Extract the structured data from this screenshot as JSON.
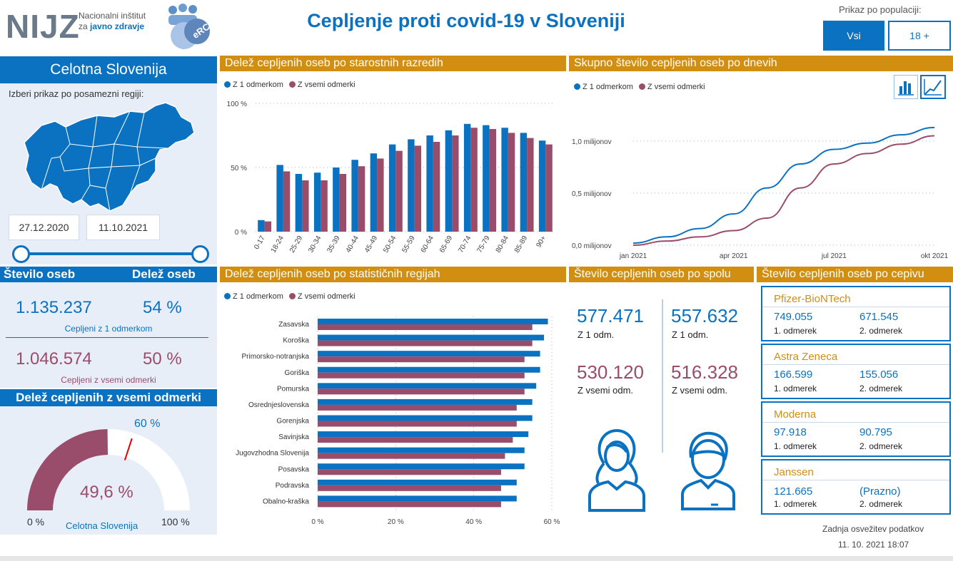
{
  "header": {
    "logo_text": "NIJZ",
    "logo_line1": "Nacionalni inštitut",
    "logo_line2_prefix": "za ",
    "logo_line2_bold": "javno zdravje",
    "badge_text": "eRCO",
    "title": "Cepljenje proti covid-19 v Sloveniji",
    "population_label": "Prikaz po populaciji:",
    "population_options": [
      "Vsi",
      "18 +"
    ],
    "population_selected": "Vsi"
  },
  "colors": {
    "blue": "#0a72c0",
    "maroon": "#9a4d6a",
    "gold": "#d18e11",
    "panel": "#e8eef8"
  },
  "region_panel": {
    "title": "Celotna Slovenija",
    "prompt": "Izberi prikaz po posamezni regiji:",
    "date_from": "27.12.2020",
    "date_to": "11.10.2021"
  },
  "totals": {
    "col1_header": "Število oseb",
    "col2_header": "Delež oseb",
    "dose1_count": "1.135.237",
    "dose1_pct": "54 %",
    "dose1_label": "Cepljeni z 1 odmerkom",
    "full_count": "1.046.574",
    "full_pct": "50 %",
    "full_label": "Cepljeni z vsemi odmerki"
  },
  "gauge": {
    "title": "Delež cepljenih z vsemi odmerki",
    "value": 49.6,
    "value_text": "49,6 %",
    "target": 60,
    "target_text": "60 %",
    "min_text": "0 %",
    "max_text": "100 %",
    "caption": "Celotna Slovenija"
  },
  "legend": {
    "dose1": "Z 1 odmerkom",
    "full": "Z vsemi odmerki"
  },
  "sections": {
    "age": "Delež cepljenih oseb po starostnih razredih",
    "daily": "Skupno število cepljenih oseb po dnevih",
    "regions": "Delež cepljenih oseb po statističnih regijah",
    "sex": "Število cepljenih oseb po spolu",
    "vaccine": "Število cepljenih oseb po cepivu"
  },
  "chart_data": [
    {
      "id": "age",
      "type": "bar",
      "title": "Delež cepljenih oseb po starostnih razredih",
      "categories": [
        "0-17",
        "18-24",
        "25-29",
        "30-34",
        "35-39",
        "40-44",
        "45-49",
        "50-54",
        "55-59",
        "60-64",
        "65-69",
        "70-74",
        "75-79",
        "80-84",
        "85-89",
        "90+"
      ],
      "series": [
        {
          "name": "Z 1 odmerkom",
          "values": [
            9,
            52,
            45,
            46,
            50,
            56,
            61,
            68,
            72,
            75,
            79,
            84,
            83,
            81,
            77,
            71
          ]
        },
        {
          "name": "Z vsemi odmerki",
          "values": [
            8,
            47,
            40,
            40,
            45,
            51,
            57,
            63,
            67,
            70,
            75,
            81,
            80,
            77,
            73,
            68
          ]
        }
      ],
      "ylim": [
        0,
        100
      ],
      "yticks": [
        "0 %",
        "50 %",
        "100 %"
      ]
    },
    {
      "id": "daily",
      "type": "line",
      "title": "Skupno število cepljenih oseb po dnevih",
      "x": [
        "jan 2021",
        "feb 2021",
        "mar 2021",
        "apr 2021",
        "maj 2021",
        "jun 2021",
        "jul 2021",
        "avg 2021",
        "sep 2021",
        "okt 2021"
      ],
      "series": [
        {
          "name": "Z 1 odmerkom",
          "values": [
            0.02,
            0.08,
            0.16,
            0.3,
            0.55,
            0.78,
            0.92,
            0.98,
            1.06,
            1.13
          ]
        },
        {
          "name": "Z vsemi odmerki",
          "values": [
            0.0,
            0.04,
            0.08,
            0.14,
            0.26,
            0.55,
            0.78,
            0.88,
            0.97,
            1.05
          ]
        }
      ],
      "ylim": [
        0,
        1.3
      ],
      "yticks": [
        "0,0 milijonov",
        "0,5 milijonov",
        "1,0 milijonov"
      ],
      "xticks": [
        "jan 2021",
        "apr 2021",
        "jul 2021",
        "okt 2021"
      ]
    },
    {
      "id": "regions",
      "type": "bar",
      "orientation": "horizontal",
      "title": "Delež cepljenih oseb po statističnih regijah",
      "categories": [
        "Zasavska",
        "Koroška",
        "Primorsko-notranjska",
        "Goriška",
        "Pomurska",
        "Osrednjeslovenska",
        "Gorenjska",
        "Savinjska",
        "Jugovzhodna Slovenija",
        "Posavska",
        "Podravska",
        "Obalno-kraška"
      ],
      "series": [
        {
          "name": "Z 1 odmerkom",
          "values": [
            59,
            58,
            57,
            57,
            56,
            55,
            55,
            54,
            53,
            53,
            51,
            51
          ]
        },
        {
          "name": "Z vsemi odmerki",
          "values": [
            55,
            55,
            53,
            53,
            53,
            51,
            51,
            50,
            48,
            47,
            47,
            47
          ]
        }
      ],
      "xlim": [
        0,
        60
      ],
      "xticks": [
        "0 %",
        "20 %",
        "40 %",
        "60 %"
      ]
    }
  ],
  "sex": {
    "female_dose1": "577.471",
    "female_dose1_label": "Z 1 odm.",
    "female_full": "530.120",
    "female_full_label": "Z vsemi odm.",
    "male_dose1": "557.632",
    "male_dose1_label": "Z 1 odm.",
    "male_full": "516.328",
    "male_full_label": "Z vsemi odm."
  },
  "vaccines": [
    {
      "name": "Pfizer-BioNTech",
      "dose1": "749.055",
      "dose2": "671.545",
      "dose1_label": "1. odmerek",
      "dose2_label": "2. odmerek"
    },
    {
      "name": "Astra Zeneca",
      "dose1": "166.599",
      "dose2": "155.056",
      "dose1_label": "1. odmerek",
      "dose2_label": "2. odmerek"
    },
    {
      "name": "Moderna",
      "dose1": "97.918",
      "dose2": "90.795",
      "dose1_label": "1. odmerek",
      "dose2_label": "2. odmerek"
    },
    {
      "name": "Janssen",
      "dose1": "121.665",
      "dose2": "(Prazno)",
      "dose1_label": "1. odmerek",
      "dose2_label": "2. odmerek"
    }
  ],
  "footer": {
    "label": "Zadnja osvežitev podatkov",
    "timestamp": "11. 10. 2021 18:07"
  }
}
